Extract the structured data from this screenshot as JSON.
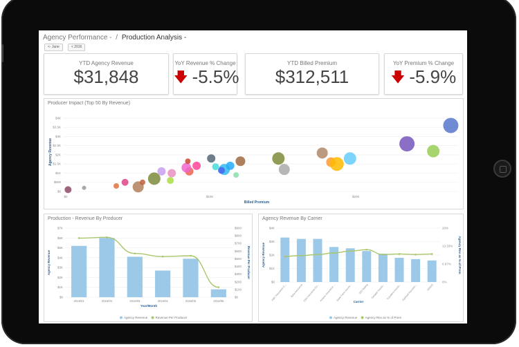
{
  "breadcrumb": {
    "parent": "Agency Performance -",
    "separator": "/",
    "current": "Production Analysis -"
  },
  "filters": [
    {
      "label": "<- June"
    },
    {
      "label": "< 2016"
    }
  ],
  "kpis": [
    {
      "title": "YTD Agency Revenue",
      "value": "$31,848",
      "trend": "none"
    },
    {
      "title": "YoY Revenue % Change",
      "value": "-5.5%",
      "trend": "down"
    },
    {
      "title": "YTD Billed Premium",
      "value": "$312,511",
      "trend": "none"
    },
    {
      "title": "YoY Premium % Change",
      "value": "-5.9%",
      "trend": "down"
    }
  ],
  "colors": {
    "down_arrow": "#cc0000",
    "bar": "#9cc9e8",
    "line": "#a9c66b",
    "frame": "#0b0b0b"
  },
  "chart_data": [
    {
      "type": "scatter",
      "title": "Producer Impact (Top 50 By Revenue)",
      "xlabel": "Billed Premium",
      "ylabel": "Agency Revenue",
      "xticks": [
        "$0",
        "$10K",
        "$20K"
      ],
      "yticks": [
        "$0",
        "$500",
        "$1K",
        "$1.5K",
        "$2K",
        "$2.5K",
        "$3K",
        "$3.5K",
        "$4K"
      ],
      "xlim": [
        0,
        27000
      ],
      "ylim": [
        0,
        4300
      ],
      "points": [
        {
          "x": 300,
          "y": 100,
          "size": 5,
          "color": "#8e4a6a"
        },
        {
          "x": 1400,
          "y": 200,
          "size": 3,
          "color": "#999999"
        },
        {
          "x": 3600,
          "y": 300,
          "size": 4,
          "color": "#e07040"
        },
        {
          "x": 5100,
          "y": 250,
          "size": 8,
          "color": "#b0805a"
        },
        {
          "x": 5400,
          "y": 500,
          "size": 4,
          "color": "#c06040"
        },
        {
          "x": 6200,
          "y": 700,
          "size": 9,
          "color": "#7d8c3c"
        },
        {
          "x": 4200,
          "y": 500,
          "size": 5,
          "color": "#dd4488"
        },
        {
          "x": 7300,
          "y": 600,
          "size": 5,
          "color": "#aadd44"
        },
        {
          "x": 6700,
          "y": 1100,
          "size": 6,
          "color": "#c8a0f0"
        },
        {
          "x": 7400,
          "y": 1000,
          "size": 6,
          "color": "#e890c0"
        },
        {
          "x": 8600,
          "y": 1100,
          "size": 6,
          "color": "#f06050"
        },
        {
          "x": 8400,
          "y": 1300,
          "size": 7,
          "color": "#ee66cc"
        },
        {
          "x": 9100,
          "y": 1400,
          "size": 6,
          "color": "#ff4499"
        },
        {
          "x": 8500,
          "y": 1650,
          "size": 4,
          "color": "#c84a30"
        },
        {
          "x": 10400,
          "y": 1350,
          "size": 5,
          "color": "#44dddd"
        },
        {
          "x": 10100,
          "y": 1800,
          "size": 6,
          "color": "#556677"
        },
        {
          "x": 11000,
          "y": 1200,
          "size": 8,
          "color": "#33bbee"
        },
        {
          "x": 10800,
          "y": 1150,
          "size": 5,
          "color": "#4466ee"
        },
        {
          "x": 11400,
          "y": 1400,
          "size": 6,
          "color": "#22aaff"
        },
        {
          "x": 11800,
          "y": 900,
          "size": 4,
          "color": "#88ddaa"
        },
        {
          "x": 12100,
          "y": 1650,
          "size": 7,
          "color": "#a06a42"
        },
        {
          "x": 14700,
          "y": 1800,
          "size": 9,
          "color": "#7e8c3a"
        },
        {
          "x": 15100,
          "y": 1200,
          "size": 8,
          "color": "#aaaaaa"
        },
        {
          "x": 17700,
          "y": 2100,
          "size": 8,
          "color": "#b08868"
        },
        {
          "x": 18300,
          "y": 1600,
          "size": 7,
          "color": "#ff9933"
        },
        {
          "x": 18700,
          "y": 1500,
          "size": 10,
          "color": "#ffbb00"
        },
        {
          "x": 19600,
          "y": 1800,
          "size": 9,
          "color": "#66ccff"
        },
        {
          "x": 23500,
          "y": 2600,
          "size": 11,
          "color": "#7755bb"
        },
        {
          "x": 25300,
          "y": 2200,
          "size": 9,
          "color": "#99cc55"
        },
        {
          "x": 26500,
          "y": 3600,
          "size": 11,
          "color": "#5577cc"
        }
      ]
    },
    {
      "type": "bar",
      "title": "Production - Revenue By Producer",
      "xlabel": "Year/Month",
      "ylabel": "Agency Revenue",
      "y2label": "Revenue Per Producer",
      "categories": [
        "2016/01",
        "2016/02",
        "2016/03",
        "2016/04",
        "2016/05",
        "2016/06"
      ],
      "yticks": [
        "$0",
        "$1K",
        "$2K",
        "$3K",
        "$4K",
        "$5K",
        "$6K",
        "$7K"
      ],
      "y2ticks": [
        "$0",
        "$100",
        "$200",
        "$300",
        "$400",
        "$500",
        "$600",
        "$700",
        "$800",
        "$900"
      ],
      "ylim": [
        0,
        7000
      ],
      "y2lim": [
        0,
        900
      ],
      "series": [
        {
          "name": "Agency Revenue",
          "kind": "bar",
          "values": [
            5200,
            6000,
            4100,
            2700,
            3900,
            800
          ]
        },
        {
          "name": "Revenue Per Producer",
          "kind": "line",
          "axis": "right",
          "values": [
            770,
            780,
            570,
            530,
            540,
            130
          ]
        }
      ],
      "legend": "bottom"
    },
    {
      "type": "bar",
      "title": "Agency Revenue By Carrier",
      "xlabel": "Carrier",
      "ylabel": "Agency Revenue",
      "y2label": "Agency Rev as % of Prem",
      "categories": [
        "ABC Insurance C...",
        "Beta Insurance",
        "CSA Insurance Co...",
        "Americ Insurance ...",
        "State Farm Insura...",
        "ISG Rating",
        "Kemper Insura...",
        "Travelers Insura...",
        "Hartford Insuranc...",
        "GEICO"
      ],
      "yticks": [
        "$0",
        "$1K",
        "$2K",
        "$3K",
        "$4K"
      ],
      "y2ticks": [
        "0%",
        "6.67%",
        "13.33%",
        "20%"
      ],
      "ylim": [
        0,
        4000
      ],
      "y2lim": [
        0,
        20
      ],
      "series": [
        {
          "name": "Agency Revenue",
          "kind": "bar",
          "values": [
            3300,
            3200,
            3200,
            2600,
            2500,
            2300,
            2100,
            1800,
            1700,
            1600
          ]
        },
        {
          "name": "Agency Rev as % of Prem",
          "kind": "line",
          "axis": "right",
          "values": [
            9.5,
            9.8,
            10.2,
            10.8,
            11.5,
            12,
            10.2,
            10.4,
            10.2,
            10.4
          ]
        }
      ],
      "legend": "bottom"
    }
  ]
}
